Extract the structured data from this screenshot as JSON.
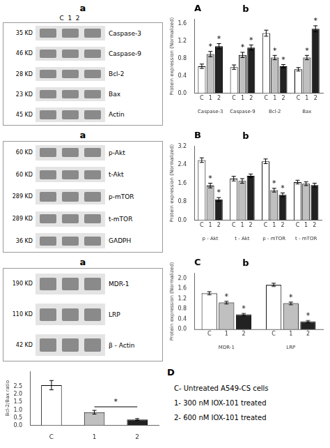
{
  "chart_data": [
    {
      "type": "blot",
      "title": "a",
      "subtitle": "C  1  2",
      "categories": [
        "Caspase-3",
        "Caspase-9",
        "Bcl-2",
        "Bax",
        "Actin"
      ],
      "annotations": [
        "35 KD",
        "46 KD",
        "28 KD",
        "23 KD",
        "45 KD"
      ]
    },
    {
      "type": "bar",
      "title": "b",
      "categories": [
        "Caspase-3",
        "Caspase-9",
        "Bcl-2",
        "Bax"
      ],
      "series": [
        {
          "name": "C",
          "color": "#ffffff",
          "values": [
            0.62,
            0.6,
            1.38,
            0.55
          ],
          "errors": [
            0.05,
            0.05,
            0.07,
            0.04
          ]
        },
        {
          "name": "1",
          "color": "#c0c0c0",
          "values": [
            0.9,
            0.88,
            0.82,
            0.82
          ],
          "errors": [
            0.06,
            0.06,
            0.05,
            0.05
          ]
        },
        {
          "name": "2",
          "color": "#222222",
          "values": [
            1.08,
            1.05,
            0.62,
            1.48
          ],
          "errors": [
            0.06,
            0.06,
            0.04,
            0.07
          ]
        }
      ],
      "ylabel": "Protein expression (Normalized)",
      "ylim": [
        0,
        1.7
      ],
      "yticks": [
        {
          "value": 0,
          "label": "0.0"
        },
        0.4,
        0.8,
        1.2,
        1.6
      ],
      "grid": false,
      "annotations": [
        {
          "text": "A"
        },
        {
          "text": "*",
          "series": "1",
          "category": "Caspase-3"
        },
        {
          "text": "*",
          "series": "1",
          "category": "Caspase-9"
        },
        {
          "text": "*",
          "series": "1",
          "category": "Bcl-2"
        },
        {
          "text": "*",
          "series": "1",
          "category": "Bax"
        },
        {
          "text": "*",
          "series": "2",
          "category": "Caspase-3"
        },
        {
          "text": "*",
          "series": "2",
          "category": "Caspase-9"
        },
        {
          "text": "*",
          "series": "2",
          "category": "Bcl-2"
        },
        {
          "text": "*",
          "series": "2",
          "category": "Bax"
        }
      ]
    },
    {
      "type": "blot",
      "title": "a",
      "categories": [
        "p-Akt",
        "t-Akt",
        "p-mTOR",
        "t-mTOR",
        "GADPH"
      ],
      "annotations": [
        "60 KD",
        "60 KD",
        "289 KD",
        "289 KD",
        "36 KD"
      ]
    },
    {
      "type": "bar",
      "title": "b",
      "categories": [
        "p - Akt",
        "t - Akt",
        "p - mTOR",
        "t - mTOR"
      ],
      "series": [
        {
          "name": "C",
          "color": "#ffffff",
          "values": [
            2.6,
            1.8,
            2.55,
            1.65
          ],
          "errors": [
            0.1,
            0.1,
            0.1,
            0.08
          ]
        },
        {
          "name": "1",
          "color": "#c0c0c0",
          "values": [
            1.5,
            1.7,
            1.3,
            1.58
          ],
          "errors": [
            0.1,
            0.1,
            0.08,
            0.08
          ]
        },
        {
          "name": "2",
          "color": "#222222",
          "values": [
            0.9,
            1.92,
            1.1,
            1.52
          ],
          "errors": [
            0.08,
            0.08,
            0.08,
            0.08
          ]
        }
      ],
      "ylabel": "Protein expression (Normalized)",
      "ylim": [
        0,
        3.2
      ],
      "yticks": [
        {
          "value": 0,
          "label": "0.0"
        },
        0.8,
        1.6,
        2.4,
        3.2
      ],
      "grid": false,
      "annotations": [
        {
          "text": "B"
        },
        {
          "text": "*",
          "series": "1",
          "category": "p - Akt"
        },
        {
          "text": "*",
          "series": "1",
          "category": "p - mTOR"
        },
        {
          "text": "*",
          "series": "2",
          "category": "p - Akt"
        },
        {
          "text": "*",
          "series": "2",
          "category": "p - mTOR"
        }
      ]
    },
    {
      "type": "blot",
      "title": "a",
      "categories": [
        "MDR-1",
        "LRP",
        "β - Actin"
      ],
      "annotations": [
        "190 KD",
        "110 KD",
        "42 KD"
      ]
    },
    {
      "type": "bar",
      "title": "b",
      "categories": [
        "MDR-1",
        "LRP"
      ],
      "series": [
        {
          "name": "C",
          "color": "#ffffff",
          "values": [
            1.42,
            1.75
          ],
          "errors": [
            0.06,
            0.06
          ]
        },
        {
          "name": "1",
          "color": "#c0c0c0",
          "values": [
            1.05,
            1.02
          ],
          "errors": [
            0.05,
            0.05
          ]
        },
        {
          "name": "2",
          "color": "#222222",
          "values": [
            0.58,
            0.3
          ],
          "errors": [
            0.04,
            0.04
          ]
        }
      ],
      "ylabel": "Protein expression (Normalized)",
      "ylim": [
        0.0,
        2.2
      ],
      "yticks": [
        {
          "value": 0,
          "label": "0.0"
        },
        0.4,
        0.8,
        1.2,
        1.6,
        {
          "value": 2,
          "label": "2.0"
        }
      ],
      "grid": false,
      "annotations": [
        {
          "text": "C"
        },
        {
          "text": "*",
          "series": "1",
          "category": "MDR-1"
        },
        {
          "text": "*",
          "series": "1",
          "category": "LRP"
        },
        {
          "text": "*",
          "series": "2",
          "category": "MDR-1"
        },
        {
          "text": "*",
          "series": "2",
          "category": "LRP"
        }
      ]
    },
    {
      "type": "bar",
      "categories": [
        "C",
        "1",
        "2"
      ],
      "values": [
        2.6,
        0.85,
        0.38
      ],
      "errors": [
        0.3,
        0.12,
        0.06
      ],
      "colors": [
        "#ffffff",
        "#c0c0c0",
        "#222222"
      ],
      "ylabel": "Bcl-2/Bax ratio",
      "ylim": [
        0,
        3.5
      ],
      "yticks": [
        {
          "value": 0,
          "label": "0.0"
        },
        0.5,
        {
          "value": 1,
          "label": "1.0"
        },
        1.5,
        {
          "value": 2,
          "label": "2.0"
        },
        2.5
      ],
      "grid": false,
      "annotations": [
        {
          "text": "*",
          "from": "1",
          "to": "2",
          "y": 1.2
        }
      ]
    },
    {
      "type": "text",
      "title": "D",
      "annotations": [
        "C- Untreated A549-CS cells",
        "1- 300 nM IOX-101 treated",
        "2- 600 nM IOX-101 treated"
      ]
    }
  ]
}
